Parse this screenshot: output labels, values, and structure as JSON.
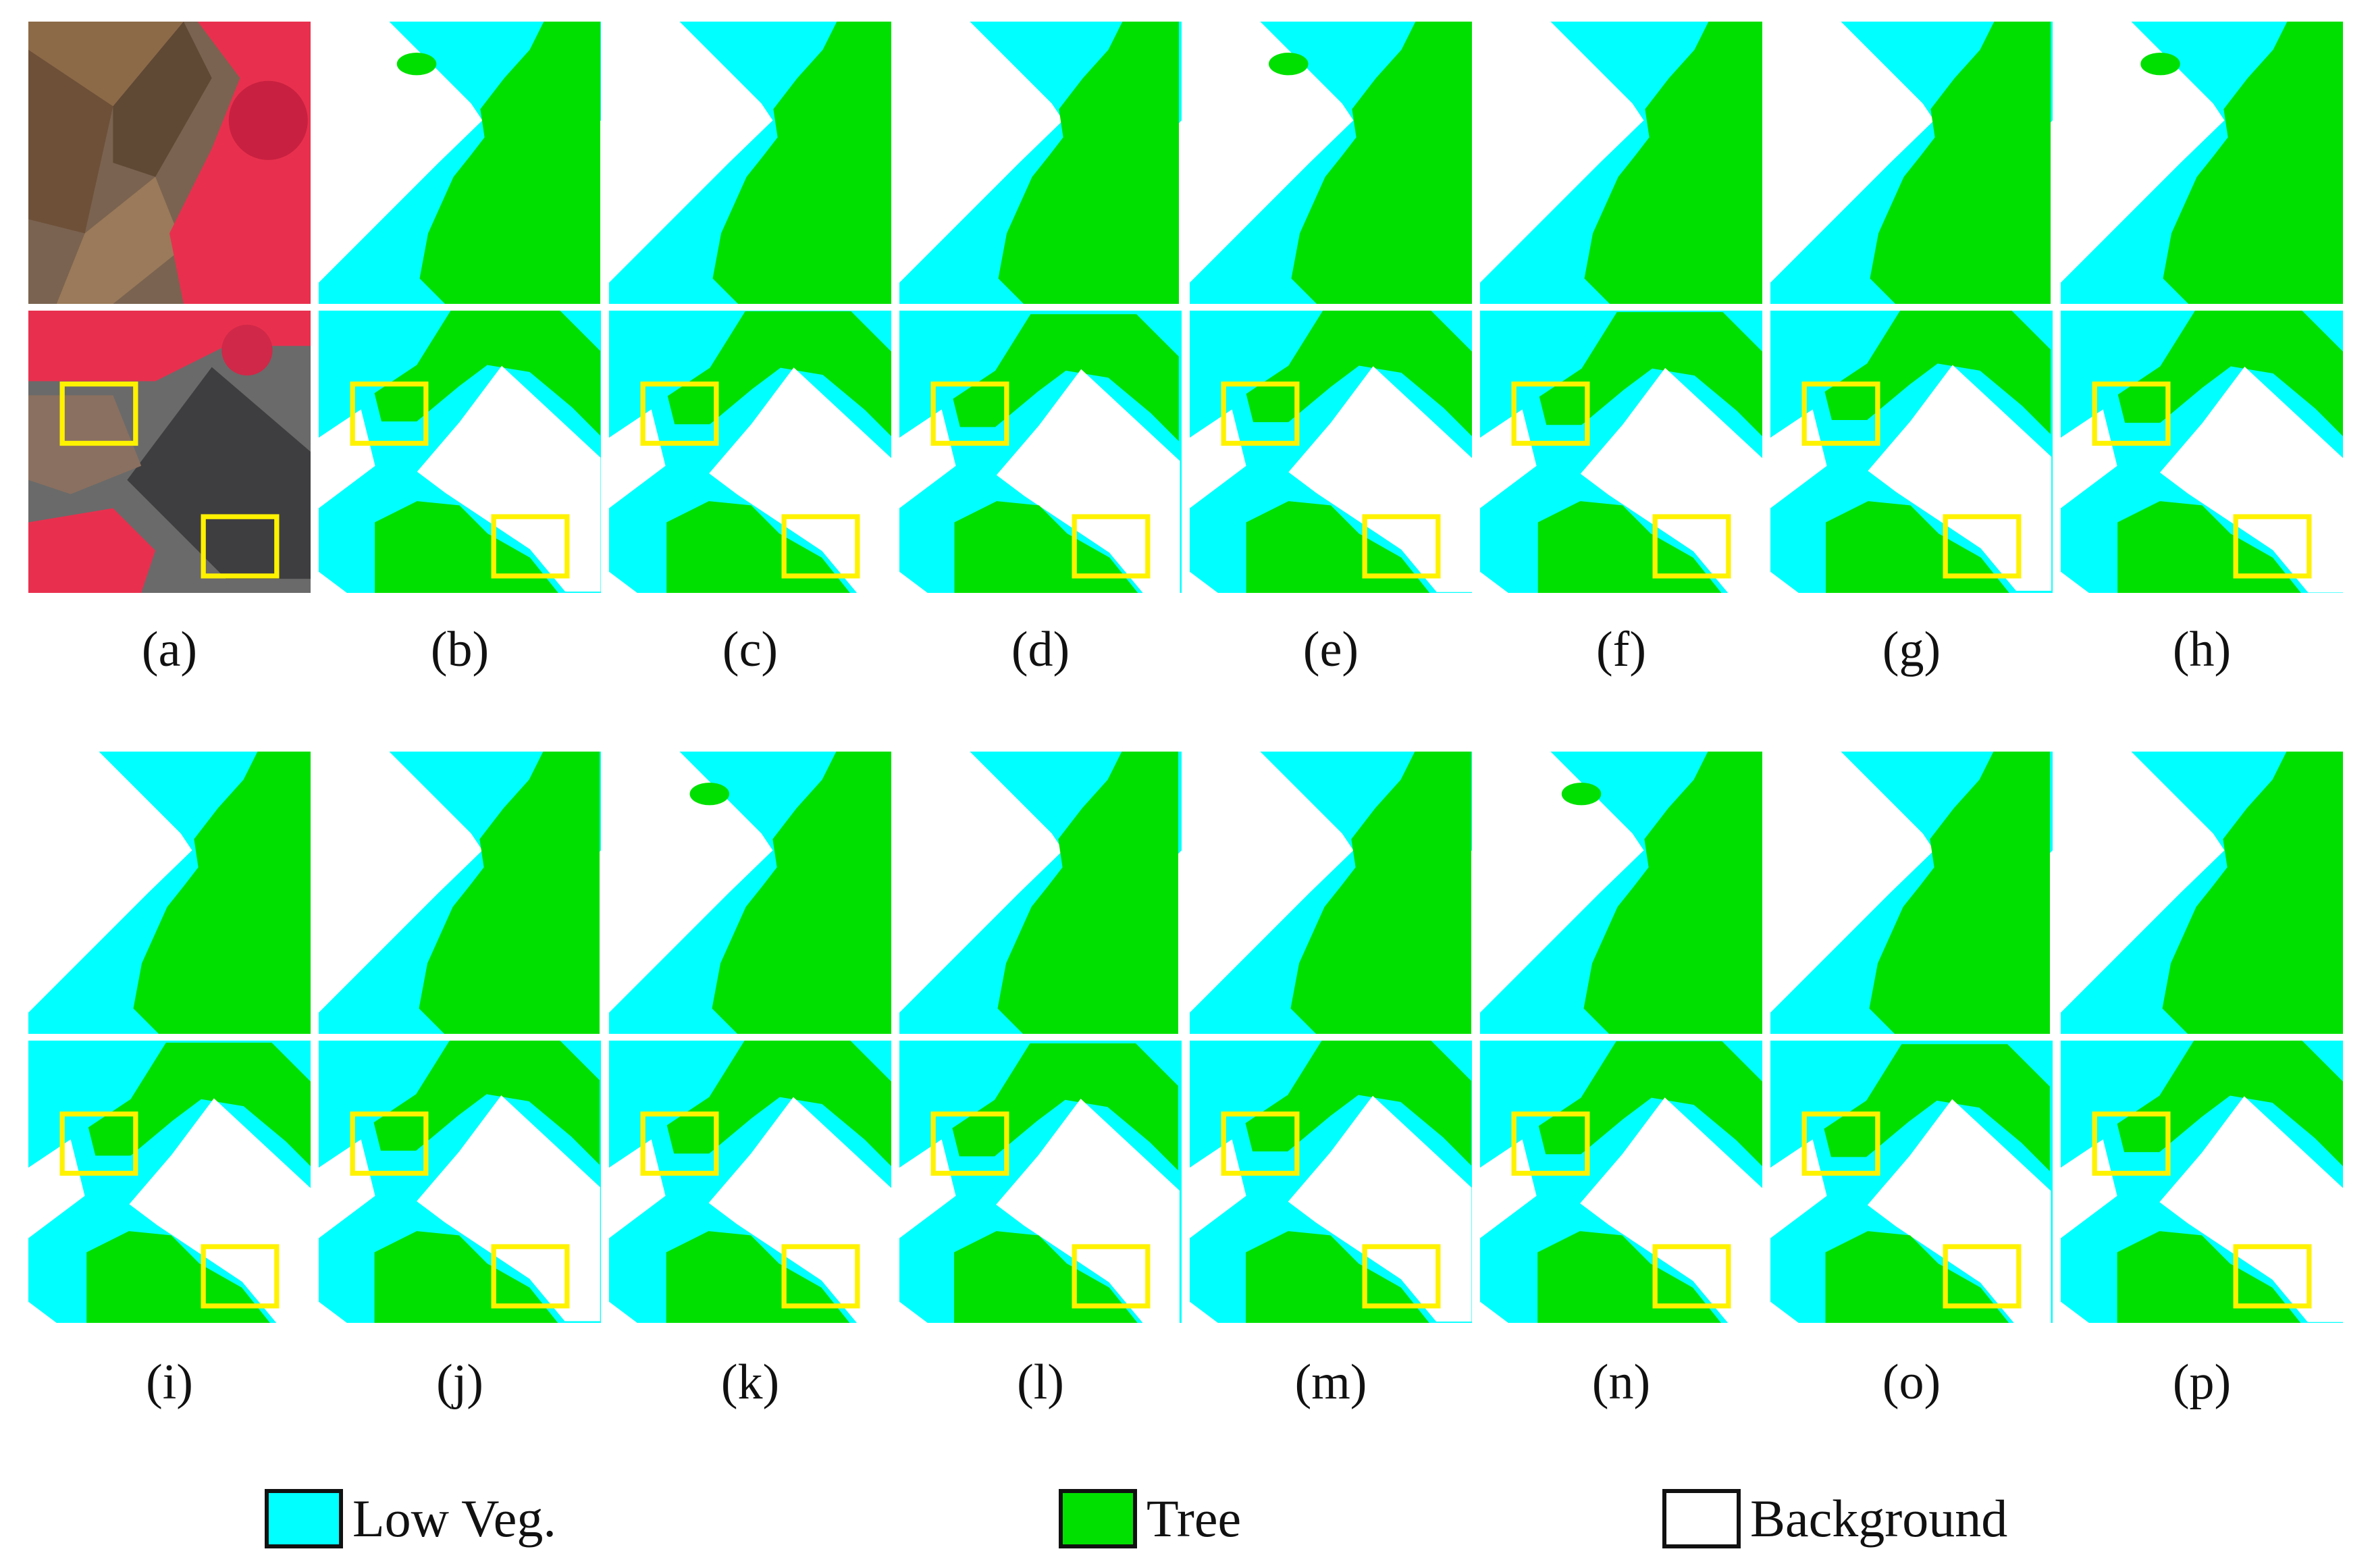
{
  "figure": {
    "groups": [
      {
        "panels": [
          "a",
          "b",
          "c",
          "d",
          "e",
          "f",
          "g",
          "h"
        ],
        "captions": [
          "(a)",
          "(b)",
          "(c)",
          "(d)",
          "(e)",
          "(f)",
          "(g)",
          "(h)"
        ]
      },
      {
        "panels": [
          "i",
          "j",
          "k",
          "l",
          "m",
          "n",
          "o",
          "p"
        ],
        "captions": [
          "(i)",
          "(j)",
          "(k)",
          "(l)",
          "(m)",
          "(n)",
          "(o)",
          "(p)"
        ]
      }
    ],
    "panel_types": {
      "a": "input-image",
      "default": "segmentation-map"
    },
    "panel_rows": [
      "scene-1",
      "scene-2-with-highlight-boxes"
    ]
  },
  "legend": {
    "items": [
      {
        "label": "Low Veg.",
        "color": "#00FFFF"
      },
      {
        "label": "Tree",
        "color": "#00E000"
      },
      {
        "label": "Background",
        "color": "#FFFFFF"
      }
    ]
  },
  "colors": {
    "low_veg": "#00FFFF",
    "tree": "#00E000",
    "background": "#FFFFFF",
    "highlight_box": "#FFF200",
    "ir_vegetation": "#E8304E",
    "roof_brown": "#8C6A48",
    "roof_dark": "#3E3E40"
  }
}
